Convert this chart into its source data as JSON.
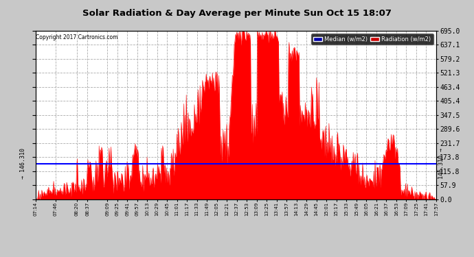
{
  "title": "Solar Radiation & Day Average per Minute Sun Oct 15 18:07",
  "copyright": "Copyright 2017 Cartronics.com",
  "median_value": 146.31,
  "y_max": 695.0,
  "y_min": 0.0,
  "y_ticks": [
    0.0,
    57.9,
    115.8,
    173.8,
    231.7,
    289.6,
    347.5,
    405.4,
    463.4,
    521.3,
    579.2,
    637.1,
    695.0
  ],
  "background_color": "#c8c8c8",
  "plot_bg_color": "#ffffff",
  "bar_color": "#ff0000",
  "median_color": "#0000ff",
  "legend_median_bg": "#0000aa",
  "legend_radiation_bg": "#cc0000",
  "grid_color": "#aaaaaa",
  "xtick_labels": [
    "07:14",
    "07:46",
    "08:20",
    "08:37",
    "09:09",
    "09:25",
    "09:41",
    "09:57",
    "10:13",
    "10:29",
    "10:45",
    "11:01",
    "11:17",
    "11:33",
    "11:49",
    "12:05",
    "12:21",
    "12:37",
    "12:53",
    "13:09",
    "13:25",
    "13:41",
    "13:57",
    "14:13",
    "14:29",
    "14:45",
    "15:01",
    "15:17",
    "15:33",
    "15:49",
    "16:05",
    "16:21",
    "16:37",
    "16:53",
    "17:09",
    "17:25",
    "17:41",
    "17:57"
  ]
}
